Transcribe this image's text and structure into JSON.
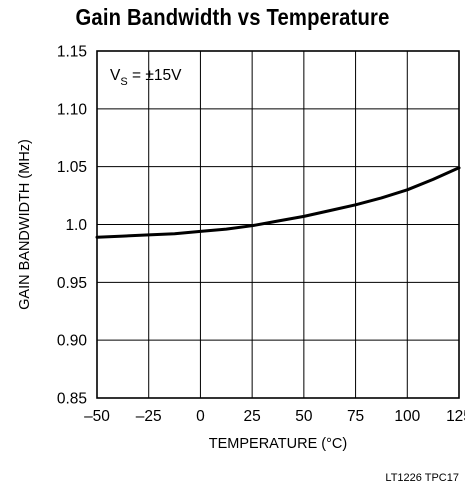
{
  "chart_data": {
    "type": "line",
    "title": "Gain Bandwidth vs Temperature",
    "xlabel": "TEMPERATURE (°C)",
    "ylabel": "GAIN BANDWIDTH (MHz)",
    "xlim": [
      -50,
      125
    ],
    "ylim": [
      0.85,
      1.15
    ],
    "x_ticks": [
      -50,
      -25,
      0,
      25,
      50,
      75,
      100,
      125
    ],
    "x_tick_labels": [
      "–50",
      "–25",
      "0",
      "25",
      "50",
      "75",
      "100",
      "125"
    ],
    "y_ticks": [
      0.85,
      0.9,
      0.95,
      1.0,
      1.05,
      1.1,
      1.15
    ],
    "y_tick_labels": [
      "0.85",
      "0.90",
      "0.95",
      "1.0",
      "1.05",
      "1.10",
      "1.15"
    ],
    "grid": true,
    "annotation": {
      "main": "V",
      "sub": "S",
      "rest": " = ±15V"
    },
    "series": [
      {
        "x": [
          -50,
          -37.5,
          -25,
          -12.5,
          0,
          12.5,
          25,
          37.5,
          50,
          62.5,
          75,
          87.5,
          100,
          112.5,
          125
        ],
        "y": [
          0.989,
          0.99,
          0.991,
          0.992,
          0.994,
          0.996,
          0.999,
          1.003,
          1.007,
          1.012,
          1.017,
          1.023,
          1.03,
          1.039,
          1.049
        ]
      }
    ],
    "footer": "LT1226 TPC17"
  }
}
